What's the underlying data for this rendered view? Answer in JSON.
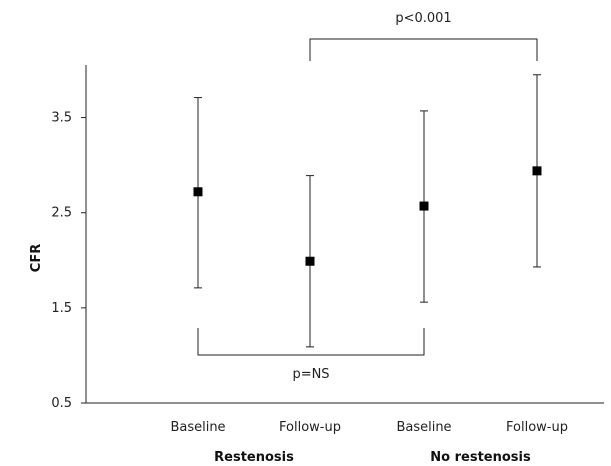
{
  "chart_data": {
    "type": "scatter",
    "ylabel": "CFR",
    "ylim": [
      0.5,
      4.0
    ],
    "yticks": [
      0.5,
      1.5,
      2.5,
      3.5
    ],
    "categories": [
      "Baseline",
      "Follow-up",
      "Baseline",
      "Follow-up"
    ],
    "groups": [
      {
        "label": "Restenosis",
        "categories": [
          0,
          1
        ]
      },
      {
        "label": "No restenosis",
        "categories": [
          2,
          3
        ]
      }
    ],
    "points": [
      {
        "category": 0,
        "mean": 2.72,
        "lower": 1.71,
        "upper": 3.71
      },
      {
        "category": 1,
        "mean": 1.99,
        "lower": 1.09,
        "upper": 2.89
      },
      {
        "category": 2,
        "mean": 2.57,
        "lower": 1.56,
        "upper": 3.57
      },
      {
        "category": 3,
        "mean": 2.94,
        "lower": 1.93,
        "upper": 3.95
      }
    ],
    "annotations": [
      {
        "text": "p<0.001",
        "from": 1,
        "to": 3,
        "position": "top"
      },
      {
        "text": "p=NS",
        "from": 0,
        "to": 2,
        "position": "bottom"
      }
    ],
    "grid": false
  }
}
